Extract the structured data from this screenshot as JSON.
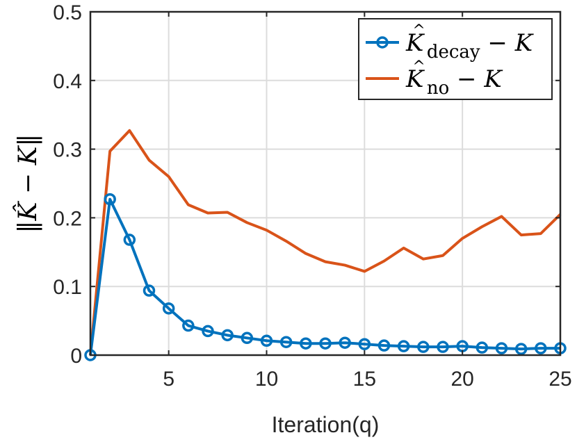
{
  "chart_data": {
    "type": "line",
    "xlabel": "Iteration(q)",
    "ylabel": "||K̂ − K||",
    "xlim": [
      1,
      25
    ],
    "ylim": [
      0,
      0.5
    ],
    "xticks": [
      5,
      10,
      15,
      20,
      25
    ],
    "yticks": [
      0,
      0.1,
      0.2,
      0.3,
      0.4,
      0.5
    ],
    "ytick_labels": [
      "0",
      "0.1",
      "0.2",
      "0.3",
      "0.4",
      "0.5"
    ],
    "grid": true,
    "legend_position": "top-right",
    "series": [
      {
        "name": "K̂decay − K",
        "legend": {
          "base": "K",
          "hat": "^",
          "sub": "decay",
          "rest": " − K"
        },
        "color": "#0072BD",
        "marker": "circle",
        "x": [
          1,
          2,
          3,
          4,
          5,
          6,
          7,
          8,
          9,
          10,
          11,
          12,
          13,
          14,
          15,
          16,
          17,
          18,
          19,
          20,
          21,
          22,
          23,
          24,
          25
        ],
        "values": [
          0.0,
          0.227,
          0.168,
          0.094,
          0.068,
          0.043,
          0.035,
          0.029,
          0.025,
          0.021,
          0.019,
          0.017,
          0.017,
          0.018,
          0.016,
          0.014,
          0.013,
          0.012,
          0.012,
          0.013,
          0.011,
          0.01,
          0.009,
          0.01,
          0.01
        ]
      },
      {
        "name": "K̂no − K",
        "legend": {
          "base": "K",
          "hat": "^",
          "sub": "no",
          "rest": " − K"
        },
        "color": "#D95319",
        "marker": "none",
        "x": [
          1,
          2,
          3,
          4,
          5,
          6,
          7,
          8,
          9,
          10,
          11,
          12,
          13,
          14,
          15,
          16,
          17,
          18,
          19,
          20,
          21,
          22,
          23,
          24,
          25
        ],
        "values": [
          0.0,
          0.297,
          0.327,
          0.284,
          0.26,
          0.219,
          0.207,
          0.208,
          0.193,
          0.182,
          0.166,
          0.148,
          0.136,
          0.131,
          0.122,
          0.137,
          0.156,
          0.14,
          0.145,
          0.17,
          0.187,
          0.202,
          0.175,
          0.177,
          0.205
        ]
      }
    ]
  }
}
